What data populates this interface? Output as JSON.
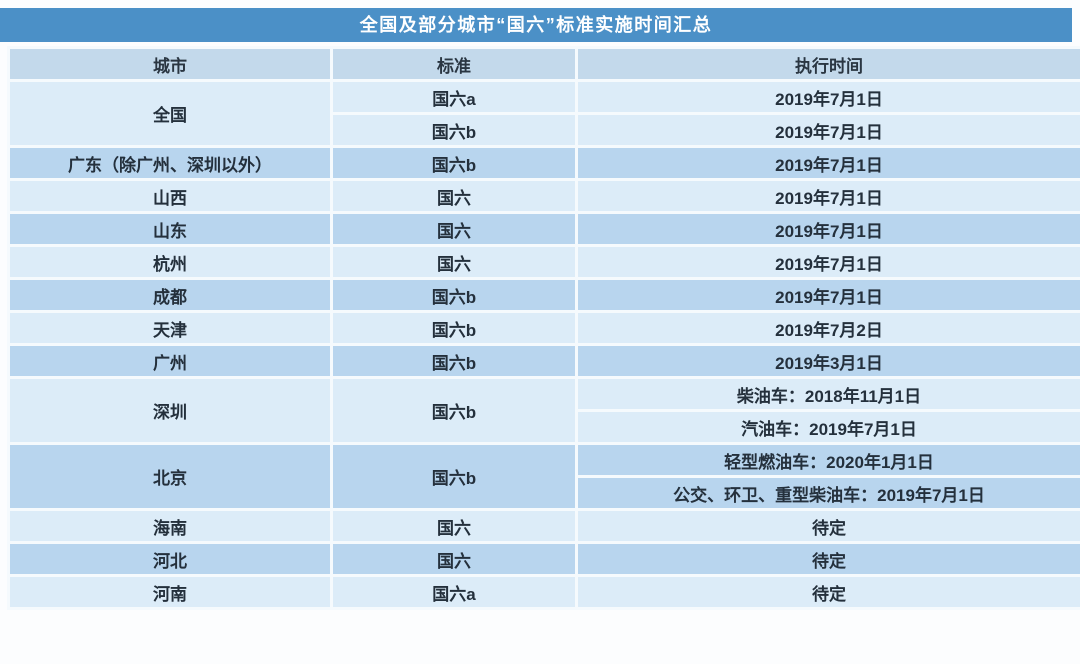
{
  "colors": {
    "title_bg": "#4b90c7",
    "title_text": "#ffffff",
    "header_bg": "#c3d9eb",
    "row_light": "#dcecf8",
    "row_dark": "#b8d5ee",
    "separator": "#f5fafd",
    "body_text": "#24303c"
  },
  "table": {
    "title": "全国及部分城市“国六”标准实施时间汇总",
    "columns": [
      "城市",
      "标准",
      "执行时间"
    ],
    "rows": [
      {
        "city": "全国",
        "standard": "国六a",
        "time": "2019年7月1日"
      },
      {
        "standard": "国六b",
        "time": "2019年7月1日"
      },
      {
        "city": "广东（除广州、深圳以外）",
        "standard": "国六b",
        "time": "2019年7月1日"
      },
      {
        "city": "山西",
        "standard": "国六",
        "time": "2019年7月1日"
      },
      {
        "city": "山东",
        "standard": "国六",
        "time": "2019年7月1日"
      },
      {
        "city": "杭州",
        "standard": "国六",
        "time": "2019年7月1日"
      },
      {
        "city": "成都",
        "standard": "国六b",
        "time": "2019年7月1日"
      },
      {
        "city": "天津",
        "standard": "国六b",
        "time": "2019年7月2日"
      },
      {
        "city": "广州",
        "standard": "国六b",
        "time": "2019年3月1日"
      },
      {
        "city": "深圳",
        "standard": "国六b",
        "time": "柴油车：2018年11月1日"
      },
      {
        "time": "汽油车：2019年7月1日"
      },
      {
        "city": "北京",
        "standard": "国六b",
        "time": "轻型燃油车：2020年1月1日"
      },
      {
        "time": "公交、环卫、重型柴油车：2019年7月1日"
      },
      {
        "city": "海南",
        "standard": "国六",
        "time": "待定"
      },
      {
        "city": "河北",
        "standard": "国六",
        "time": "待定"
      },
      {
        "city": "河南",
        "standard": "国六a",
        "time": "待定"
      }
    ]
  },
  "chart_data": {
    "type": "table",
    "title": "全国及部分城市“国六”标准实施时间汇总",
    "columns": [
      "城市",
      "标准",
      "执行时间"
    ],
    "rows": [
      [
        "全国",
        "国六a",
        "2019年7月1日"
      ],
      [
        "全国",
        "国六b",
        "2019年7月1日"
      ],
      [
        "广东（除广州、深圳以外）",
        "国六b",
        "2019年7月1日"
      ],
      [
        "山西",
        "国六",
        "2019年7月1日"
      ],
      [
        "山东",
        "国六",
        "2019年7月1日"
      ],
      [
        "杭州",
        "国六",
        "2019年7月1日"
      ],
      [
        "成都",
        "国六b",
        "2019年7月1日"
      ],
      [
        "天津",
        "国六b",
        "2019年7月2日"
      ],
      [
        "广州",
        "国六b",
        "2019年3月1日"
      ],
      [
        "深圳",
        "国六b",
        "柴油车：2018年11月1日"
      ],
      [
        "深圳",
        "国六b",
        "汽油车：2019年7月1日"
      ],
      [
        "北京",
        "国六b",
        "轻型燃油车：2020年1月1日"
      ],
      [
        "北京",
        "国六b",
        "公交、环卫、重型柴油车：2019年7月1日"
      ],
      [
        "海南",
        "国六",
        "待定"
      ],
      [
        "河北",
        "国六",
        "待定"
      ],
      [
        "河南",
        "国六a",
        "待定"
      ]
    ],
    "layout": {
      "header_position": "top",
      "merged_city_groups": [
        "全国",
        "深圳",
        "北京"
      ],
      "row_shading": "alternating by city group (light/dark blue)"
    }
  }
}
